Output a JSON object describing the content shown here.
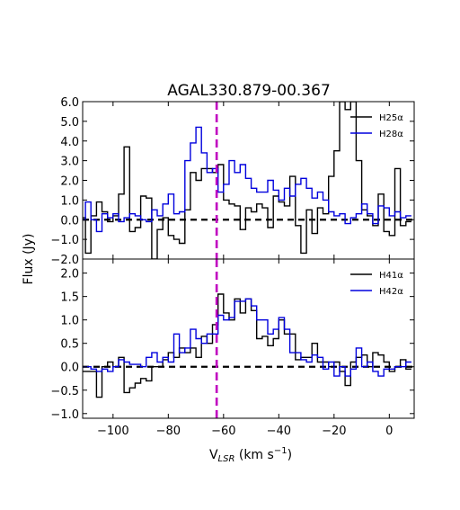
{
  "chart_data": {
    "type": "line",
    "title": "AGAL330.879-00.367",
    "xlabel_main": "V",
    "xlabel_sub": "LSR",
    "xlabel_units": " (km s",
    "xlabel_exp": "−1",
    "xlabel_close": ")",
    "ylabel": "Flux (Jy)",
    "xlim": [
      -111,
      9
    ],
    "x_ticks": [
      -100,
      -80,
      -60,
      -40,
      -20,
      0
    ],
    "x_tick_labels": [
      "−100",
      "−80",
      "−60",
      "−40",
      "−20",
      "0"
    ],
    "vline_x": -62.5,
    "panels": [
      {
        "ylim": [
          -2.0,
          6.0
        ],
        "y_ticks": [
          -2.0,
          -1.0,
          0.0,
          1.0,
          2.0,
          3.0,
          4.0,
          5.0,
          6.0
        ],
        "y_tick_labels": [
          "−2.0",
          "−1.0",
          "0.0",
          "1.0",
          "2.0",
          "3.0",
          "4.0",
          "5.0",
          "6.0"
        ],
        "legend_position": "top-right",
        "series": [
          {
            "name": "H25α",
            "color": "#000000",
            "x": [
              -111,
              -109,
              -107,
              -105,
              -103,
              -101,
              -99,
              -97,
              -95,
              -93,
              -91,
              -89,
              -87,
              -85,
              -83,
              -81,
              -79,
              -77,
              -75,
              -73,
              -71,
              -69,
              -67,
              -65,
              -63,
              -61,
              -59,
              -57,
              -55,
              -53,
              -51,
              -49,
              -47,
              -45,
              -43,
              -41,
              -39,
              -37,
              -35,
              -33,
              -31,
              -29,
              -27,
              -25,
              -23,
              -21,
              -19,
              -17,
              -15,
              -13,
              -11,
              -9,
              -7,
              -5,
              -3,
              -1,
              1,
              3,
              5,
              7
            ],
            "values": [
              0.1,
              -1.7,
              0.2,
              0.9,
              0.4,
              -0.1,
              0.2,
              1.3,
              3.7,
              -0.6,
              -0.4,
              1.2,
              1.1,
              -2.0,
              -0.5,
              0.1,
              -0.8,
              -1.0,
              -1.2,
              0.5,
              2.4,
              2.0,
              2.6,
              2.6,
              2.4,
              2.8,
              1.0,
              0.8,
              0.7,
              -0.5,
              0.6,
              0.4,
              0.8,
              0.6,
              -0.4,
              1.2,
              0.9,
              0.7,
              2.2,
              -0.3,
              -1.7,
              0.5,
              -0.7,
              0.6,
              0.3,
              2.2,
              3.5,
              6.0,
              5.6,
              6.0,
              3.0,
              0.5,
              0.2,
              -0.3,
              1.3,
              -0.6,
              -0.8,
              2.6,
              -0.3,
              -0.1
            ]
          },
          {
            "name": "H28α",
            "color": "#0000dd",
            "x": [
              -111,
              -109,
              -107,
              -105,
              -103,
              -101,
              -99,
              -97,
              -95,
              -93,
              -91,
              -89,
              -87,
              -85,
              -83,
              -81,
              -79,
              -77,
              -75,
              -73,
              -71,
              -69,
              -67,
              -65,
              -63,
              -61,
              -59,
              -57,
              -55,
              -53,
              -51,
              -49,
              -47,
              -45,
              -43,
              -41,
              -39,
              -37,
              -35,
              -33,
              -31,
              -29,
              -27,
              -25,
              -23,
              -21,
              -19,
              -17,
              -15,
              -13,
              -11,
              -9,
              -7,
              -5,
              -3,
              -1,
              1,
              3,
              5,
              7
            ],
            "values": [
              0.0,
              0.9,
              0.0,
              -0.6,
              0.3,
              0.1,
              0.3,
              -0.1,
              0.1,
              0.3,
              0.2,
              0.0,
              -0.1,
              0.5,
              0.2,
              0.8,
              1.3,
              0.3,
              0.4,
              3.0,
              3.9,
              4.7,
              3.4,
              2.4,
              2.6,
              1.4,
              1.8,
              3.0,
              2.4,
              2.8,
              2.1,
              1.6,
              1.4,
              1.4,
              2.0,
              1.5,
              1.0,
              1.6,
              1.2,
              1.8,
              2.1,
              1.6,
              1.1,
              1.4,
              1.0,
              0.4,
              0.2,
              0.3,
              -0.2,
              0.1,
              0.3,
              0.8,
              0.3,
              -0.2,
              0.7,
              0.6,
              0.2,
              0.4,
              0.1,
              0.2
            ]
          }
        ]
      },
      {
        "ylim": [
          -1.1,
          2.3
        ],
        "y_ticks": [
          -1.0,
          -0.5,
          0.0,
          0.5,
          1.0,
          1.5,
          2.0
        ],
        "y_tick_labels": [
          "−1.0",
          "−0.5",
          "0.0",
          "0.5",
          "1.0",
          "1.5",
          "2.0"
        ],
        "legend_position": "top-right",
        "series": [
          {
            "name": "H41α",
            "color": "#000000",
            "x": [
              -111,
              -109,
              -107,
              -105,
              -103,
              -101,
              -99,
              -97,
              -95,
              -93,
              -91,
              -89,
              -87,
              -85,
              -83,
              -81,
              -79,
              -77,
              -75,
              -73,
              -71,
              -69,
              -67,
              -65,
              -63,
              -61,
              -59,
              -57,
              -55,
              -53,
              -51,
              -49,
              -47,
              -45,
              -43,
              -41,
              -39,
              -37,
              -35,
              -33,
              -31,
              -29,
              -27,
              -25,
              -23,
              -21,
              -19,
              -17,
              -15,
              -13,
              -11,
              -9,
              -7,
              -5,
              -3,
              -1,
              1,
              3,
              5,
              7
            ],
            "values": [
              -0.1,
              -0.1,
              -0.1,
              -0.65,
              0.0,
              0.1,
              0.0,
              0.2,
              -0.55,
              -0.45,
              -0.35,
              -0.25,
              -0.3,
              0.0,
              0.0,
              0.15,
              0.3,
              0.2,
              0.4,
              0.3,
              0.4,
              0.2,
              0.65,
              0.5,
              0.9,
              1.55,
              1.15,
              1.0,
              1.45,
              1.15,
              1.45,
              1.2,
              0.6,
              0.65,
              0.45,
              0.6,
              1.0,
              0.7,
              0.7,
              0.15,
              0.2,
              0.2,
              0.5,
              0.1,
              0.1,
              0.0,
              0.1,
              -0.1,
              -0.4,
              0.1,
              0.2,
              0.25,
              0.0,
              0.3,
              0.25,
              0.1,
              -0.1,
              0.0,
              0.15,
              -0.05
            ]
          },
          {
            "name": "H42α",
            "color": "#0000dd",
            "x": [
              -111,
              -109,
              -107,
              -105,
              -103,
              -101,
              -99,
              -97,
              -95,
              -93,
              -91,
              -89,
              -87,
              -85,
              -83,
              -81,
              -79,
              -77,
              -75,
              -73,
              -71,
              -69,
              -67,
              -65,
              -63,
              -61,
              -59,
              -57,
              -55,
              -53,
              -51,
              -49,
              -47,
              -45,
              -43,
              -41,
              -39,
              -37,
              -35,
              -33,
              -31,
              -29,
              -27,
              -25,
              -23,
              -21,
              -19,
              -17,
              -15,
              -13,
              -11,
              -9,
              -7,
              -5,
              -3,
              -1,
              1,
              3,
              5,
              7
            ],
            "values": [
              0.0,
              0.0,
              -0.05,
              -0.1,
              -0.05,
              -0.1,
              0.0,
              0.15,
              0.1,
              0.05,
              0.05,
              0.0,
              0.2,
              0.3,
              0.1,
              0.2,
              0.1,
              0.7,
              0.3,
              0.4,
              0.8,
              0.6,
              0.5,
              0.7,
              0.7,
              1.1,
              1.0,
              1.05,
              1.4,
              1.4,
              1.45,
              1.3,
              1.0,
              1.0,
              0.7,
              0.8,
              1.05,
              0.8,
              0.3,
              0.3,
              0.15,
              0.1,
              0.25,
              0.2,
              -0.05,
              0.1,
              -0.2,
              0.0,
              -0.2,
              -0.05,
              0.4,
              0.0,
              0.1,
              -0.1,
              -0.2,
              -0.05,
              -0.05,
              0.0,
              0.0,
              0.1
            ]
          }
        ]
      }
    ]
  }
}
